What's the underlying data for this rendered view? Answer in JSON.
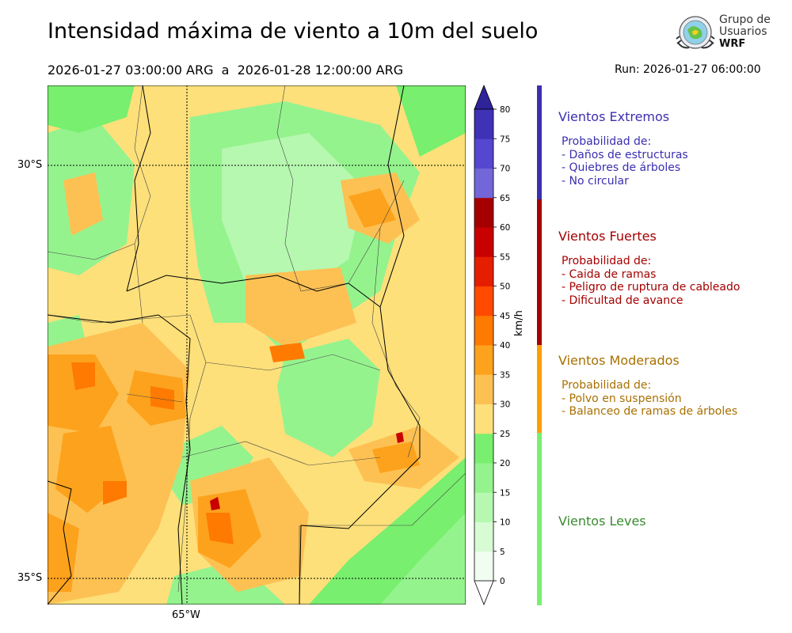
{
  "header": {
    "title": "Intensidad máxima de viento a 10m del suelo",
    "period": "2026-01-27 03:00:00 ARG  a  2026-01-28 12:00:00 ARG",
    "run": "Run: 2026-01-27 06:00:00"
  },
  "logo": {
    "line1": "Grupo de",
    "line2": "Usuarios",
    "line3": "WRF"
  },
  "map": {
    "lat_labels": [
      "30°S",
      "35°S"
    ],
    "lon_labels": [
      "65°W"
    ],
    "gridlines": "dotted"
  },
  "colorbar": {
    "unit": "km/h",
    "ticks": [
      "0",
      "5",
      "10",
      "15",
      "20",
      "25",
      "30",
      "35",
      "40",
      "45",
      "50",
      "55",
      "60",
      "65",
      "70",
      "75",
      "80"
    ],
    "colors": [
      "#f0fdf0",
      "#d7fbd3",
      "#b6f8b0",
      "#95f38e",
      "#78ef6e",
      "#fde07a",
      "#fdc153",
      "#fda21c",
      "#ff7a00",
      "#ff4a00",
      "#e61e00",
      "#c80000",
      "#a50000",
      "#7266d8",
      "#5547cf",
      "#3f32b6"
    ],
    "extend_max_color": "#2e2398",
    "extend_min_color": "#ffffff"
  },
  "legend": [
    {
      "title": "Vientos Extremos",
      "color": "#3b2fb0",
      "body": "Probabilidad de:\n- Daños de estructuras\n- Quiebres de árboles\n- No circular"
    },
    {
      "title": "Vientos Fuertes",
      "color": "#a40000",
      "body": "Probabilidad de:\n- Caida de ramas\n- Peligro de ruptura de cableado\n- Dificultad de avance"
    },
    {
      "title": "Vientos Moderados",
      "color": "#a87000",
      "body": "Probabilidad de:\n- Polvo en suspensión\n- Balanceo de ramas de árboles"
    },
    {
      "title": "Vientos Leves",
      "color": "#3a8a30",
      "body": ""
    }
  ],
  "category_bar_colors": [
    "#3b2fb0",
    "#a40000",
    "#ff9e00",
    "#78ef6e"
  ]
}
